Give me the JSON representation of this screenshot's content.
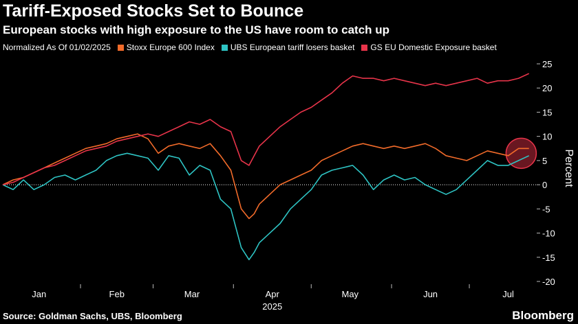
{
  "title": "Tariff-Exposed Stocks Set to Bounce",
  "subtitle": "European stocks with high exposure to the US have room to catch up",
  "legend_prefix": "Normalized As Of 01/02/2025",
  "source": "Source: Goldman Sachs, UBS, Bloomberg",
  "brand": "Bloomberg",
  "colors": {
    "background": "#000000",
    "stoxx": "#f26b2a",
    "ubs": "#2ec4c4",
    "gs": "#e8344a",
    "zero_line": "#ffffff"
  },
  "chart_data": {
    "type": "line",
    "xlabel": "2025",
    "ylabel": "Percent",
    "ylim": [
      -20,
      25
    ],
    "yticks": [
      25,
      20,
      15,
      10,
      5,
      0,
      -5,
      -10,
      -15,
      -20
    ],
    "ytick_labels": [
      "25",
      "20",
      "15",
      "10",
      "5",
      "0",
      "-5",
      "-10",
      "-15",
      "-20"
    ],
    "xlim": [
      "2025-01-02",
      "2025-07-27"
    ],
    "xticks": [
      {
        "label": "Jan",
        "date": "2025-01-16"
      },
      {
        "label": "Feb",
        "date": "2025-02-15"
      },
      {
        "label": "Mar",
        "date": "2025-03-16"
      },
      {
        "label": "Apr",
        "date": "2025-04-16"
      },
      {
        "label": "May",
        "date": "2025-05-16"
      },
      {
        "label": "Jun",
        "date": "2025-06-16"
      },
      {
        "label": "Jul",
        "date": "2025-07-16"
      }
    ],
    "month_boundaries": [
      "2025-02-01",
      "2025-03-01",
      "2025-04-01",
      "2025-05-01",
      "2025-06-01",
      "2025-07-01"
    ],
    "zero_line": "dotted",
    "legend_position": "top",
    "highlight": {
      "date": "2025-07-21",
      "y": 6.5,
      "note": "circle marker on latest values"
    },
    "series": [
      {
        "name": "Stoxx Europe 600 Index",
        "color_key": "stoxx",
        "x": [
          "2025-01-02",
          "2025-01-06",
          "2025-01-10",
          "2025-01-14",
          "2025-01-18",
          "2025-01-22",
          "2025-01-26",
          "2025-01-30",
          "2025-02-03",
          "2025-02-07",
          "2025-02-11",
          "2025-02-15",
          "2025-02-19",
          "2025-02-23",
          "2025-02-27",
          "2025-03-03",
          "2025-03-07",
          "2025-03-11",
          "2025-03-15",
          "2025-03-19",
          "2025-03-23",
          "2025-03-27",
          "2025-03-31",
          "2025-04-04",
          "2025-04-07",
          "2025-04-09",
          "2025-04-11",
          "2025-04-15",
          "2025-04-19",
          "2025-04-23",
          "2025-04-27",
          "2025-05-01",
          "2025-05-05",
          "2025-05-09",
          "2025-05-13",
          "2025-05-17",
          "2025-05-21",
          "2025-05-25",
          "2025-05-29",
          "2025-06-02",
          "2025-06-06",
          "2025-06-10",
          "2025-06-14",
          "2025-06-18",
          "2025-06-22",
          "2025-06-26",
          "2025-06-30",
          "2025-07-04",
          "2025-07-08",
          "2025-07-12",
          "2025-07-16",
          "2025-07-20",
          "2025-07-24"
        ],
        "y": [
          0,
          1,
          1.5,
          2.5,
          3.5,
          4.5,
          5.5,
          6.5,
          7.5,
          8,
          8.5,
          9.5,
          10,
          10.5,
          9.5,
          6.5,
          8,
          8.5,
          8,
          7.5,
          8.5,
          6,
          3,
          -5,
          -7,
          -6,
          -4,
          -2,
          0,
          1,
          2,
          3,
          5,
          6,
          7,
          8,
          8.5,
          8,
          7.5,
          8,
          7.5,
          8,
          8.5,
          7.5,
          6,
          5.5,
          5,
          6,
          7,
          6.5,
          6,
          7.5,
          7.5
        ]
      },
      {
        "name": "UBS European tariff losers basket",
        "color_key": "ubs",
        "x": [
          "2025-01-02",
          "2025-01-06",
          "2025-01-10",
          "2025-01-14",
          "2025-01-18",
          "2025-01-22",
          "2025-01-26",
          "2025-01-30",
          "2025-02-03",
          "2025-02-07",
          "2025-02-11",
          "2025-02-15",
          "2025-02-19",
          "2025-02-23",
          "2025-02-27",
          "2025-03-03",
          "2025-03-07",
          "2025-03-11",
          "2025-03-15",
          "2025-03-19",
          "2025-03-23",
          "2025-03-27",
          "2025-03-31",
          "2025-04-04",
          "2025-04-07",
          "2025-04-09",
          "2025-04-11",
          "2025-04-15",
          "2025-04-19",
          "2025-04-23",
          "2025-04-27",
          "2025-05-01",
          "2025-05-05",
          "2025-05-09",
          "2025-05-13",
          "2025-05-17",
          "2025-05-21",
          "2025-05-25",
          "2025-05-29",
          "2025-06-02",
          "2025-06-06",
          "2025-06-10",
          "2025-06-14",
          "2025-06-18",
          "2025-06-22",
          "2025-06-26",
          "2025-06-30",
          "2025-07-04",
          "2025-07-08",
          "2025-07-12",
          "2025-07-16",
          "2025-07-20",
          "2025-07-24"
        ],
        "y": [
          0,
          -1,
          1,
          -1,
          0,
          1.5,
          2,
          1,
          2,
          3,
          5,
          6,
          6.5,
          6,
          5.5,
          3,
          6,
          5.5,
          2,
          4,
          3,
          -3,
          -5,
          -13,
          -15.5,
          -14,
          -12,
          -10,
          -8,
          -5,
          -3,
          -1,
          2,
          3,
          3.5,
          4,
          2,
          -1,
          1,
          2,
          1,
          1.5,
          0,
          -1,
          -2,
          -1,
          1,
          3,
          5,
          4,
          4,
          5,
          6
        ]
      },
      {
        "name": "GS EU Domestic Exposure basket",
        "color_key": "gs",
        "x": [
          "2025-01-02",
          "2025-01-06",
          "2025-01-10",
          "2025-01-14",
          "2025-01-18",
          "2025-01-22",
          "2025-01-26",
          "2025-01-30",
          "2025-02-03",
          "2025-02-07",
          "2025-02-11",
          "2025-02-15",
          "2025-02-19",
          "2025-02-23",
          "2025-02-27",
          "2025-03-03",
          "2025-03-07",
          "2025-03-11",
          "2025-03-15",
          "2025-03-19",
          "2025-03-23",
          "2025-03-27",
          "2025-03-31",
          "2025-04-04",
          "2025-04-07",
          "2025-04-09",
          "2025-04-11",
          "2025-04-15",
          "2025-04-19",
          "2025-04-23",
          "2025-04-27",
          "2025-05-01",
          "2025-05-05",
          "2025-05-09",
          "2025-05-13",
          "2025-05-17",
          "2025-05-21",
          "2025-05-25",
          "2025-05-29",
          "2025-06-02",
          "2025-06-06",
          "2025-06-10",
          "2025-06-14",
          "2025-06-18",
          "2025-06-22",
          "2025-06-26",
          "2025-06-30",
          "2025-07-04",
          "2025-07-08",
          "2025-07-12",
          "2025-07-16",
          "2025-07-20",
          "2025-07-24"
        ],
        "y": [
          0,
          0.5,
          1.5,
          2.5,
          3.5,
          4,
          5,
          6,
          7,
          7.5,
          8,
          9,
          9.5,
          10,
          10.5,
          10,
          11,
          12,
          13,
          12.5,
          13.5,
          12,
          11,
          5,
          4,
          6,
          8,
          10,
          12,
          13.5,
          15,
          16,
          17.5,
          19,
          21,
          22.5,
          22,
          22,
          21.5,
          22,
          21.5,
          21,
          20.5,
          21,
          20.5,
          21,
          21.5,
          22,
          21,
          21.5,
          21.5,
          22,
          23
        ]
      }
    ]
  }
}
